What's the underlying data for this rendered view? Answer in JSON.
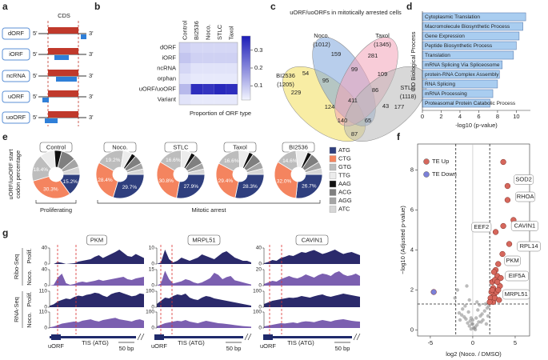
{
  "panel_a": {
    "panel": "a",
    "title": "CDS",
    "five_prime": "5'",
    "three_prime": "3'",
    "rows": [
      "dORF",
      "iORF",
      "ncRNA",
      "uORF",
      "uoORF"
    ]
  },
  "chart_data": [
    {
      "type": "heatmap",
      "panel": "b",
      "xlabel": "Proportion of ORF type",
      "categories": [
        "Control",
        "BI2536",
        "Noco.",
        "STLC",
        "Taxol"
      ],
      "rows": [
        "dORF",
        "iORF",
        "ncRNA",
        "orphan",
        "uORF/uoORF",
        "Variant"
      ],
      "values": [
        [
          0.08,
          0.07,
          0.07,
          0.07,
          0.07
        ],
        [
          0.1,
          0.08,
          0.08,
          0.08,
          0.08
        ],
        [
          0.07,
          0.05,
          0.05,
          0.05,
          0.05
        ],
        [
          0.05,
          0.04,
          0.04,
          0.04,
          0.04
        ],
        [
          0.12,
          0.35,
          0.34,
          0.36,
          0.35
        ],
        [
          0.05,
          0.04,
          0.04,
          0.04,
          0.04
        ]
      ],
      "zlim": [
        0.02,
        0.38
      ],
      "zticks": [
        0.1,
        0.2,
        0.3
      ],
      "colors": [
        "#f3f5ff",
        "#1c1cb8"
      ]
    },
    {
      "type": "venn",
      "panel": "c",
      "title": "uORF/uoORFs in mitotically arrested cells",
      "sets": [
        {
          "name": "BI2536",
          "count": "(1205)",
          "color": "#f3df5a"
        },
        {
          "name": "Noco.",
          "count": "(1012)",
          "color": "#7ea6dc"
        },
        {
          "name": "Taxol",
          "count": "(1345)",
          "color": "#f2a2b8"
        },
        {
          "name": "STLC",
          "count": "(1118)",
          "color": "#b8b8b8"
        }
      ],
      "regions": [
        159,
        281,
        54,
        99,
        109,
        229,
        95,
        86,
        177,
        411,
        124,
        43,
        140,
        65,
        87
      ]
    },
    {
      "type": "hbar",
      "panel": "d",
      "xlabel": "-log10 (p-value)",
      "ylabel": "GO Biological Process",
      "categories": [
        "Cytoplasmic Translation",
        "Macromolecule Biosynthetic Process",
        "Gene Expression",
        "Peptide Biosynthetic Process",
        "Translation",
        "mRNA Splicing Via Spliceosome",
        "protein-RNA Complex Assembly",
        "RNA Splicing",
        "mRNA Processing",
        "Proteasomal Protein Catabolic Process"
      ],
      "values": [
        11,
        10.7,
        10.3,
        10,
        9.7,
        8.5,
        8.2,
        8,
        7.5,
        7.2
      ],
      "color": "#a9cdf0",
      "xlim": [
        0,
        11.5
      ],
      "xticks": [
        0,
        2,
        4,
        6,
        8,
        10
      ]
    },
    {
      "type": "donut",
      "panel": "e",
      "ylabel": [
        "uORF/uoORF  start",
        "codon percentage"
      ],
      "categories": [
        "ATG",
        "CTG",
        "GTG",
        "TTG",
        "AAG",
        "ACG",
        "AGG",
        "ATC"
      ],
      "colors": [
        "#2f3f7e",
        "#f4845f",
        "#bdbdbd",
        "#ececec",
        "#111111",
        "#7f7f7f",
        "#a5a5a5",
        "#d6d6d6"
      ],
      "pies": [
        {
          "name": "Control",
          "values": [
            15.2,
            30.3,
            18.4,
            10,
            5,
            10,
            6,
            5.1
          ],
          "value_labels": [
            "15.2%",
            "30.3%",
            "18.4%",
            null,
            null,
            null,
            null,
            null
          ]
        },
        {
          "name": "Noco.",
          "values": [
            29.7,
            28.4,
            19.2,
            6,
            3,
            6,
            4,
            3.7
          ],
          "value_labels": [
            "29.7%",
            "28.4%",
            "19.2%",
            null,
            null,
            null,
            null,
            null
          ]
        },
        {
          "name": "STLC",
          "values": [
            27.9,
            30.8,
            16.6,
            7,
            3,
            7,
            4,
            3.7
          ],
          "value_labels": [
            "27.9%",
            "30.8%",
            "16.6%",
            null,
            null,
            null,
            null,
            null
          ]
        },
        {
          "name": "Taxol",
          "values": [
            28.3,
            29.4,
            16.6,
            7,
            3,
            7,
            4.7,
            4
          ],
          "value_labels": [
            "28.3%",
            "29.4%",
            "16.6%",
            null,
            null,
            null,
            null,
            null
          ]
        },
        {
          "name": "BI2536",
          "values": [
            26.7,
            32.0,
            14.6,
            8,
            3,
            7,
            4.7,
            4
          ],
          "value_labels": [
            "26.7%",
            "32.0%",
            "14.6%",
            null,
            null,
            null,
            null,
            null
          ]
        }
      ],
      "groups": [
        "Proliferating",
        "Mitotic arrest"
      ]
    },
    {
      "type": "scatter",
      "panel": "f",
      "xlabel": "log2 (Noco. / DMSO)",
      "ylabel": "−log10 (Adjusted p-value)",
      "xlim": [
        -6.5,
        6.7
      ],
      "ylim": [
        -0.3,
        9.3
      ],
      "xticks": [
        -5,
        0,
        5
      ],
      "yticks": [
        0,
        2,
        4,
        6,
        8
      ],
      "vlines": [
        -2,
        2
      ],
      "hline": 1.3,
      "series": [
        {
          "name": "TE Up",
          "color": "#d6675c",
          "x": [
            3.6,
            4.1,
            4.1,
            3.6,
            4.3,
            2.7,
            3.0,
            2.9,
            2.4,
            2.2,
            2.5,
            2.8,
            3.2,
            2.3,
            2.6,
            3.0,
            2.1,
            2.4,
            2.7,
            3.3,
            2.2,
            2.5,
            2.9,
            2.3,
            2.0,
            2.6,
            3.1,
            3.5,
            4.8
          ],
          "values": [
            8.4,
            7.2,
            6.5,
            5.2,
            4.3,
            4.9,
            3.3,
            2.7,
            2.1,
            1.5,
            1.7,
            1.9,
            2.2,
            2.4,
            2.5,
            2.0,
            1.6,
            1.4,
            3.0,
            2.6,
            1.9,
            2.9,
            2.4,
            2.0,
            1.4,
            1.6,
            1.5,
            3.8,
            5.5
          ],
          "labels": [
            null,
            "SOD2",
            "RHOA",
            "CAVIN1",
            "RPL14",
            "EEF2",
            "PKM",
            "EIF5A",
            "MRPL51",
            null,
            null,
            null,
            null,
            null,
            null,
            null,
            null,
            null,
            null,
            null,
            null,
            null,
            null,
            null,
            null,
            null,
            null,
            null,
            null
          ]
        },
        {
          "name": "TE Down",
          "color": "#7b80d8",
          "x": [
            -4.6
          ],
          "values": [
            1.9
          ]
        },
        {
          "color": "#8f8f8f",
          "x": [
            -0.2,
            0.1,
            0.3,
            -0.4,
            0.5,
            -0.1,
            0.2,
            -0.6,
            0.7,
            0.0,
            -0.3,
            0.4,
            -0.8,
            0.9,
            -1.0,
            1.1,
            -0.5,
            0.6,
            -1.3,
            1.4,
            -1.6,
            1.7,
            -0.9,
            0.8,
            -1.2,
            1.5,
            -2.1,
            -1.8,
            1.9,
            -0.7,
            1.2,
            0.3,
            -0.2,
            0.0,
            1.0,
            -1.5,
            1.8,
            -0.4,
            0.5,
            1.6
          ],
          "values": [
            0.05,
            0.1,
            0.15,
            0.2,
            0.25,
            0.3,
            0.08,
            0.35,
            0.4,
            0.5,
            0.45,
            0.6,
            0.55,
            0.7,
            0.65,
            0.8,
            0.9,
            1.0,
            0.75,
            0.95,
            0.85,
            1.1,
            1.2,
            1.25,
            1.05,
            1.3,
            1.6,
            2.0,
            1.2,
            2.2,
            0.5,
            0.02,
            0.6,
            0.3,
            0.4,
            0.5,
            0.7,
            1.5,
            1.4,
            0.3
          ]
        }
      ]
    },
    {
      "type": "coverage",
      "panel": "g",
      "tis": "TIS (ATG)",
      "uorf": "uORF",
      "scale": "50 bp",
      "groups": [
        {
          "name": "Ribo-Seq",
          "rows": [
            {
              "name": "Prolif.",
              "color": "#2b2a6b"
            },
            {
              "name": "Noco.",
              "color": "#7b5fb0"
            }
          ]
        },
        {
          "name": "RNA-Seq",
          "rows": [
            {
              "name": "Prolif.",
              "color": "#2b2a6b"
            },
            {
              "name": "Noco.",
              "color": "#7b5fb0"
            }
          ]
        }
      ],
      "genes": [
        {
          "name": "PKM",
          "tracks": [
            {
              "ylim": [
                0,
                40
              ],
              "yticks": [
                0,
                40
              ],
              "values": [
                0,
                0,
                5,
                3,
                0,
                1,
                2,
                6,
                8,
                10,
                12,
                18,
                22,
                15,
                20,
                25,
                30,
                36,
                28,
                20,
                18,
                25,
                20,
                15
              ]
            },
            {
              "ylim": [
                0,
                40
              ],
              "yticks": [
                0,
                40
              ],
              "values": [
                0,
                2,
                20,
                30,
                6,
                2,
                4,
                8,
                10,
                8,
                10,
                12,
                15,
                12,
                14,
                16,
                18,
                20,
                22,
                16,
                14,
                18,
                20,
                22
              ]
            },
            {
              "ylim": [
                0,
                110
              ],
              "yticks": [
                0,
                110
              ],
              "values": [
                10,
                20,
                40,
                50,
                60,
                55,
                70,
                80,
                75,
                85,
                90,
                100,
                95,
                80,
                70,
                90,
                100,
                105,
                95,
                85,
                75,
                80,
                95,
                90
              ]
            },
            {
              "ylim": [
                0,
                110
              ],
              "yticks": [
                0,
                110
              ],
              "values": [
                5,
                10,
                20,
                30,
                35,
                40,
                45,
                40,
                50,
                55,
                60,
                50,
                45,
                55,
                60,
                65,
                70,
                60,
                55,
                50,
                45,
                55,
                60,
                50
              ]
            }
          ]
        },
        {
          "name": "MRPL51",
          "tracks": [
            {
              "ylim": [
                0,
                10
              ],
              "yticks": [
                0,
                10
              ],
              "values": [
                0,
                1,
                9,
                3,
                1,
                2,
                4,
                3,
                2,
                3,
                4,
                6,
                5,
                4,
                3,
                5,
                7,
                8,
                6,
                4,
                3,
                2,
                2,
                1
              ]
            },
            {
              "ylim": [
                0,
                15
              ],
              "yticks": [
                0,
                15
              ],
              "values": [
                0,
                2,
                14,
                6,
                2,
                3,
                4,
                6,
                5,
                3,
                2,
                3,
                5,
                7,
                12,
                10,
                6,
                8,
                9,
                5,
                4,
                3,
                2,
                1
              ]
            },
            {
              "ylim": [
                0,
                100
              ],
              "yticks": [
                0,
                100
              ],
              "values": [
                20,
                40,
                60,
                55,
                70,
                80,
                75,
                85,
                60,
                50,
                45,
                60,
                70,
                65,
                55,
                50,
                45,
                40,
                35,
                30,
                25,
                20,
                15,
                10
              ]
            },
            {
              "ylim": [
                0,
                100
              ],
              "yticks": [
                0,
                100
              ],
              "values": [
                10,
                20,
                30,
                35,
                40,
                45,
                42,
                50,
                40,
                35,
                30,
                38,
                45,
                40,
                35,
                30,
                28,
                25,
                22,
                18,
                15,
                12,
                10,
                8
              ]
            }
          ]
        },
        {
          "name": "CAVIN1",
          "tracks": [
            {
              "ylim": [
                0,
                40
              ],
              "yticks": [
                0,
                40
              ],
              "values": [
                2,
                5,
                10,
                8,
                15,
                18,
                22,
                20,
                25,
                30,
                28,
                32,
                35,
                30,
                25,
                28,
                32,
                36,
                30,
                25,
                28,
                30,
                26,
                22
              ]
            },
            {
              "ylim": [
                0,
                20
              ],
              "yticks": [
                0,
                20
              ],
              "values": [
                2,
                4,
                6,
                5,
                8,
                10,
                12,
                10,
                9,
                11,
                14,
                12,
                10,
                13,
                15,
                14,
                12,
                16,
                18,
                14,
                12,
                13,
                15,
                12
              ]
            },
            {
              "ylim": [
                0,
                100
              ],
              "yticks": [
                0,
                100
              ],
              "values": [
                20,
                30,
                40,
                45,
                50,
                55,
                60,
                58,
                62,
                70,
                65,
                60,
                68,
                75,
                80,
                70,
                65,
                72,
                78,
                85,
                80,
                75,
                70,
                65
              ]
            },
            {
              "ylim": [
                0,
                100
              ],
              "yticks": [
                0,
                100
              ],
              "values": [
                10,
                15,
                20,
                25,
                30,
                28,
                32,
                35,
                30,
                38,
                42,
                40,
                36,
                44,
                50,
                45,
                40,
                48,
                52,
                55,
                50,
                45,
                42,
                40
              ]
            }
          ]
        }
      ]
    }
  ]
}
